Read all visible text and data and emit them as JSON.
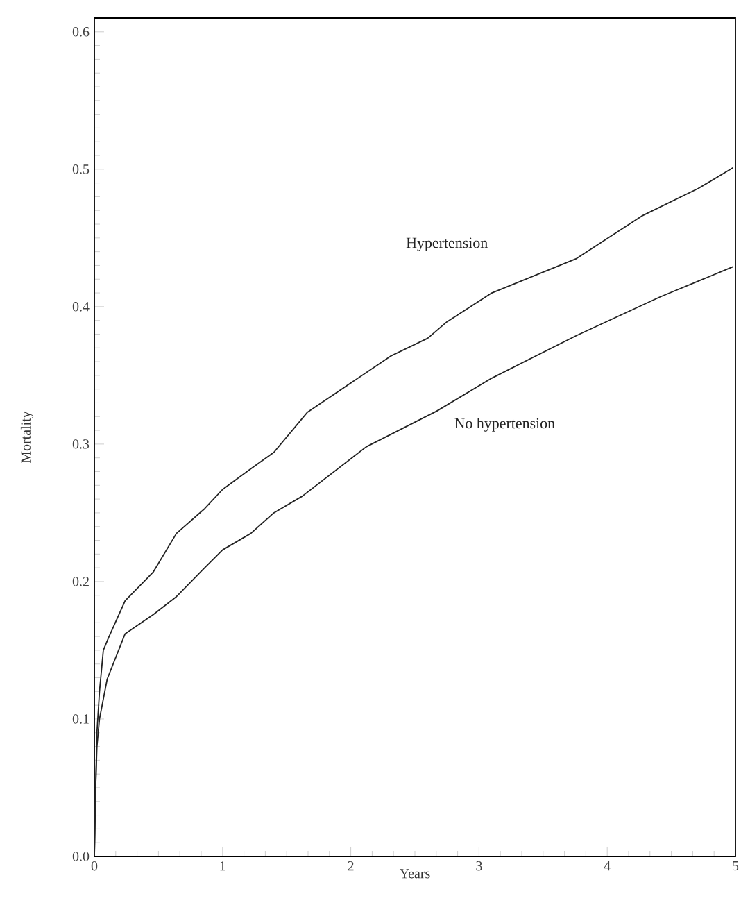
{
  "chart_data": {
    "type": "line",
    "xlabel": "Years",
    "ylabel": "Mortality",
    "xlim": [
      0,
      5
    ],
    "ylim": [
      0,
      0.61
    ],
    "xticks": [
      0,
      1,
      2,
      3,
      4,
      5
    ],
    "yticks": [
      {
        "value": 0,
        "label": "0.0"
      },
      0.1,
      0.2,
      0.3,
      0.4,
      0.5,
      0.6
    ],
    "series": [
      {
        "name": "Hypertension",
        "color": "#222222",
        "x": [
          0,
          0.01,
          0.02,
          0.04,
          0.07,
          0.11,
          0.24,
          0.46,
          0.64,
          0.86,
          1.0,
          1.22,
          1.4,
          1.66,
          2.31,
          2.6,
          2.75,
          3.1,
          3.76,
          4.27,
          4.71,
          4.98
        ],
        "values": [
          0,
          0.05,
          0.09,
          0.12,
          0.15,
          0.159,
          0.186,
          0.207,
          0.235,
          0.253,
          0.267,
          0.282,
          0.294,
          0.323,
          0.364,
          0.377,
          0.389,
          0.41,
          0.435,
          0.466,
          0.486,
          0.501
        ]
      },
      {
        "name": "No hypertension",
        "color": "#222222",
        "x": [
          0,
          0.01,
          0.02,
          0.04,
          0.1,
          0.24,
          0.46,
          0.64,
          0.86,
          1.0,
          1.22,
          1.4,
          1.62,
          2.12,
          2.67,
          3.1,
          3.76,
          4.41,
          4.98
        ],
        "values": [
          0,
          0.05,
          0.08,
          0.1,
          0.129,
          0.162,
          0.176,
          0.189,
          0.21,
          0.223,
          0.235,
          0.25,
          0.262,
          0.298,
          0.324,
          0.348,
          0.379,
          0.407,
          0.429
        ]
      }
    ]
  }
}
